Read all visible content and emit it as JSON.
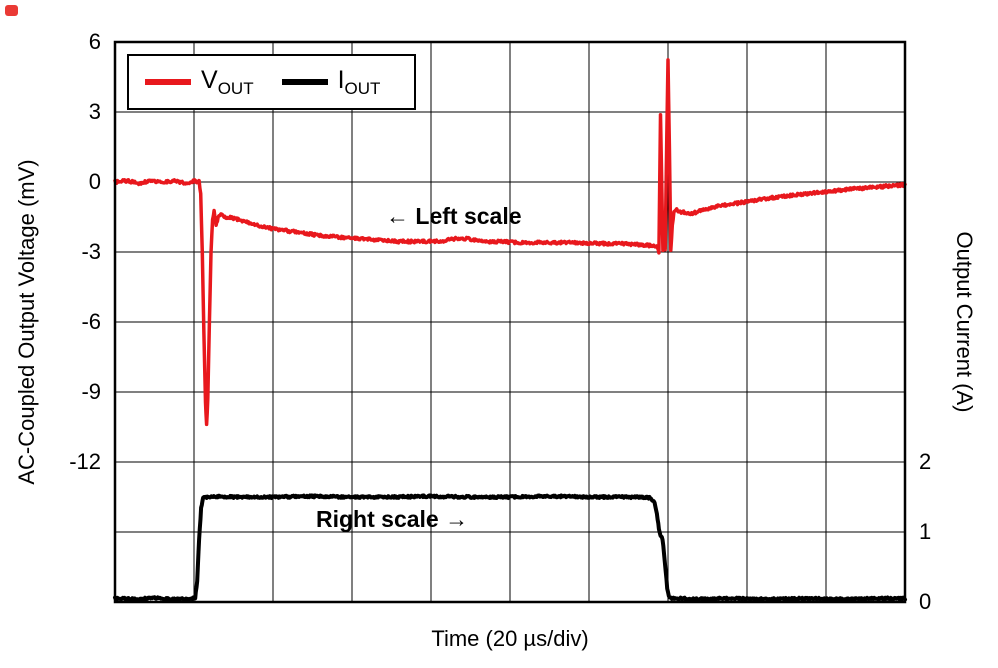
{
  "chart_data": {
    "type": "line",
    "title": "",
    "xlabel": "Time (20 µs/div)",
    "ylabel_left": "AC-Coupled Output Voltage (mV)",
    "ylabel_right": "Output Current (A)",
    "x_range_us": [
      0,
      200
    ],
    "x_divisions": 10,
    "y_divisions": 8,
    "grid": true,
    "legend_position": "top-left",
    "left_axis": {
      "min": -18,
      "max": 6,
      "tick_labels": [
        6,
        3,
        0,
        -3,
        -6,
        -9,
        -12
      ],
      "units": "mV"
    },
    "right_axis": {
      "min": 0,
      "max": 8,
      "tick_labels": [
        2,
        1,
        0
      ],
      "units": "A"
    },
    "legend": [
      {
        "name": "V",
        "sub": "OUT",
        "color": "#e8181d"
      },
      {
        "name": "I",
        "sub": "OUT",
        "color": "#000000"
      }
    ],
    "annotations": {
      "left_scale": "← Left scale",
      "right_scale": "Right scale →"
    },
    "series": [
      {
        "name": "VOUT",
        "axis": "left",
        "color": "#e8181d",
        "stroke_width": 3.5,
        "noise": 0.06,
        "points": [
          [
            0,
            0.0
          ],
          [
            3,
            0.05
          ],
          [
            6,
            -0.05
          ],
          [
            9,
            0.05
          ],
          [
            12,
            0
          ],
          [
            15,
            0.05
          ],
          [
            18,
            -0.05
          ],
          [
            20,
            0.05
          ],
          [
            21.3,
            0
          ],
          [
            21.7,
            -0.5
          ],
          [
            22.1,
            -3.0
          ],
          [
            22.5,
            -6.5
          ],
          [
            22.9,
            -9.5
          ],
          [
            23.2,
            -10.4
          ],
          [
            23.5,
            -9.3
          ],
          [
            23.9,
            -6.0
          ],
          [
            24.3,
            -3.0
          ],
          [
            24.7,
            -1.6
          ],
          [
            25.1,
            -1.25
          ],
          [
            25.6,
            -1.8
          ],
          [
            26.1,
            -1.55
          ],
          [
            26.8,
            -1.35
          ],
          [
            28,
            -1.5
          ],
          [
            30,
            -1.55
          ],
          [
            33,
            -1.7
          ],
          [
            36,
            -1.85
          ],
          [
            40,
            -2.0
          ],
          [
            44,
            -2.1
          ],
          [
            48,
            -2.2
          ],
          [
            52,
            -2.3
          ],
          [
            56,
            -2.35
          ],
          [
            60,
            -2.4
          ],
          [
            64,
            -2.45
          ],
          [
            68,
            -2.5
          ],
          [
            72,
            -2.55
          ],
          [
            76,
            -2.55
          ],
          [
            80,
            -2.55
          ],
          [
            84,
            -2.5
          ],
          [
            87,
            -2.4
          ],
          [
            90,
            -2.45
          ],
          [
            94,
            -2.55
          ],
          [
            98,
            -2.55
          ],
          [
            102,
            -2.6
          ],
          [
            108,
            -2.6
          ],
          [
            114,
            -2.6
          ],
          [
            120,
            -2.62
          ],
          [
            126,
            -2.65
          ],
          [
            130,
            -2.65
          ],
          [
            134,
            -2.7
          ],
          [
            136,
            -2.72
          ],
          [
            137.3,
            -2.8
          ],
          [
            137.7,
            -3.0
          ],
          [
            138.1,
            2.9
          ],
          [
            138.45,
            -0.5
          ],
          [
            138.7,
            -2.9
          ],
          [
            139.0,
            -2.0
          ],
          [
            139.3,
            -2.9
          ],
          [
            139.7,
            2.0
          ],
          [
            140.0,
            5.2
          ],
          [
            140.35,
            1.5
          ],
          [
            140.7,
            -2.9
          ],
          [
            141.1,
            -1.9
          ],
          [
            141.5,
            -1.3
          ],
          [
            142.2,
            -1.15
          ],
          [
            143,
            -1.3
          ],
          [
            144.5,
            -1.3
          ],
          [
            146,
            -1.35
          ],
          [
            148,
            -1.25
          ],
          [
            151,
            -1.1
          ],
          [
            154,
            -1.0
          ],
          [
            158,
            -0.9
          ],
          [
            162,
            -0.78
          ],
          [
            166,
            -0.68
          ],
          [
            170,
            -0.6
          ],
          [
            174,
            -0.52
          ],
          [
            178,
            -0.45
          ],
          [
            182,
            -0.38
          ],
          [
            186,
            -0.3
          ],
          [
            190,
            -0.26
          ],
          [
            194,
            -0.2
          ],
          [
            197,
            -0.15
          ],
          [
            200,
            -0.12
          ]
        ]
      },
      {
        "name": "IOUT",
        "axis": "right",
        "color": "#000000",
        "stroke_width": 4,
        "noise": 0.014,
        "points": [
          [
            0,
            0.05
          ],
          [
            5,
            0.04
          ],
          [
            10,
            0.06
          ],
          [
            15,
            0.04
          ],
          [
            19,
            0.05
          ],
          [
            20.3,
            0.06
          ],
          [
            20.8,
            0.3
          ],
          [
            21.3,
            0.9
          ],
          [
            21.8,
            1.35
          ],
          [
            22.3,
            1.48
          ],
          [
            23,
            1.5
          ],
          [
            26,
            1.51
          ],
          [
            30,
            1.5
          ],
          [
            40,
            1.5
          ],
          [
            50,
            1.51
          ],
          [
            60,
            1.5
          ],
          [
            70,
            1.5
          ],
          [
            80,
            1.51
          ],
          [
            90,
            1.5
          ],
          [
            100,
            1.5
          ],
          [
            110,
            1.51
          ],
          [
            120,
            1.5
          ],
          [
            128,
            1.5
          ],
          [
            133,
            1.5
          ],
          [
            135.5,
            1.49
          ],
          [
            136.6,
            1.42
          ],
          [
            137.2,
            1.25
          ],
          [
            137.7,
            1.05
          ],
          [
            138.1,
            0.95
          ],
          [
            138.6,
            0.9
          ],
          [
            139.0,
            0.7
          ],
          [
            139.4,
            0.45
          ],
          [
            139.8,
            0.2
          ],
          [
            140.2,
            0.08
          ],
          [
            140.8,
            0.05
          ],
          [
            143,
            0.05
          ],
          [
            148,
            0.04
          ],
          [
            155,
            0.05
          ],
          [
            165,
            0.04
          ],
          [
            175,
            0.05
          ],
          [
            185,
            0.04
          ],
          [
            195,
            0.05
          ],
          [
            200,
            0.05
          ]
        ]
      }
    ]
  }
}
